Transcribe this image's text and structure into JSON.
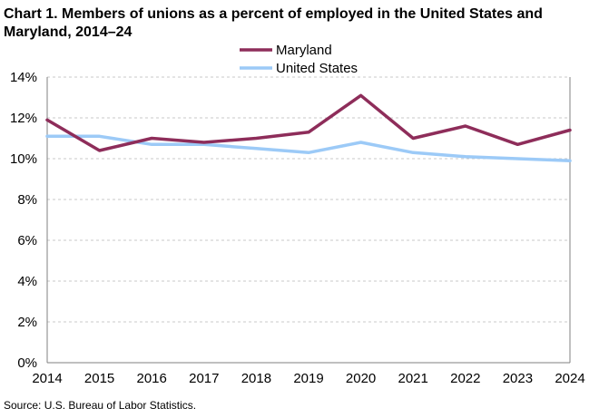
{
  "title": "Chart 1. Members of unions as a percent of employed  in the United States and Maryland, 2014–24",
  "source": "Source:  U.S. Bureau  of Labor Statistics.",
  "chart_data": {
    "type": "line",
    "title": "Chart 1. Members of unions as a percent of employed in the United States and Maryland, 2014–24",
    "xlabel": "",
    "ylabel": "",
    "x": [
      "2014",
      "2015",
      "2016",
      "2017",
      "2018",
      "2019",
      "2020",
      "2021",
      "2022",
      "2023",
      "2024"
    ],
    "ylim": [
      0,
      14
    ],
    "yticks": [
      0,
      2,
      4,
      6,
      8,
      10,
      12,
      14
    ],
    "ytick_labels": [
      "0%",
      "2%",
      "4%",
      "6%",
      "8%",
      "10%",
      "12%",
      "14%"
    ],
    "grid": true,
    "legend_position": "top-center",
    "series": [
      {
        "name": "Maryland",
        "color": "#8e2d5a",
        "values": [
          11.9,
          10.4,
          11.0,
          10.8,
          11.0,
          11.3,
          13.1,
          11.0,
          11.6,
          10.7,
          11.4
        ]
      },
      {
        "name": "United States",
        "color": "#9ccaf7",
        "values": [
          11.1,
          11.1,
          10.7,
          10.7,
          10.5,
          10.3,
          10.8,
          10.3,
          10.1,
          10.0,
          9.9
        ]
      }
    ]
  }
}
